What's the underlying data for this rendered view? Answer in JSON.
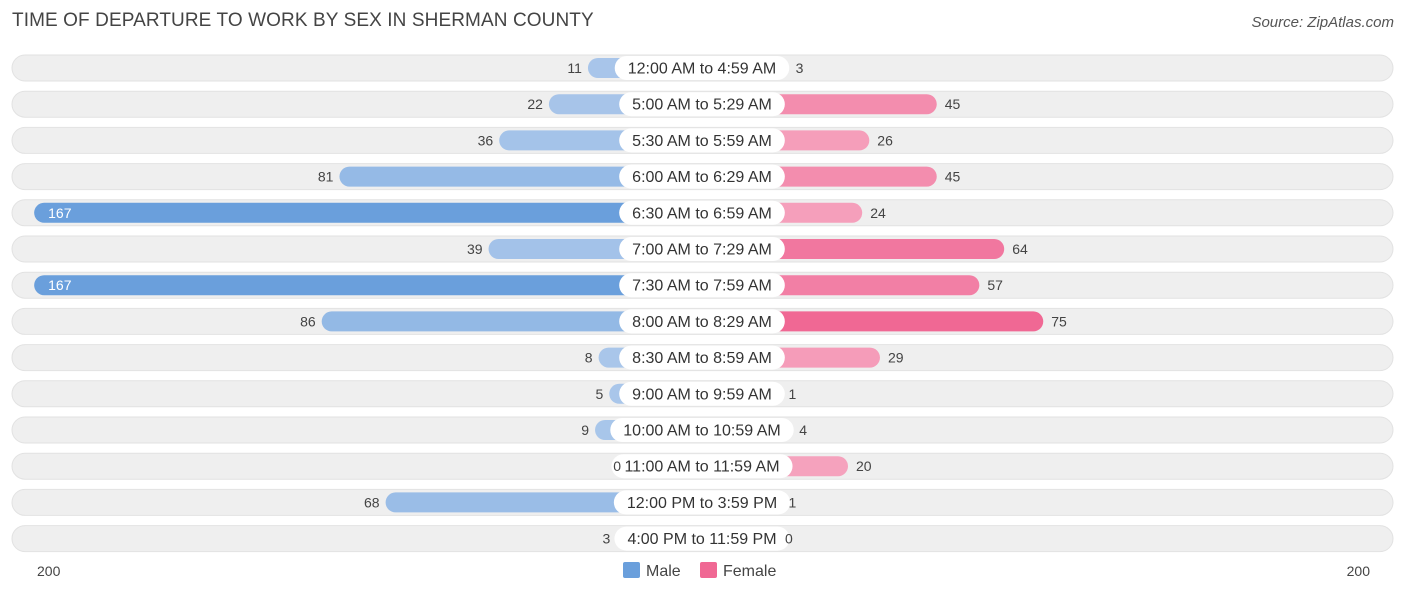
{
  "title": "TIME OF DEPARTURE TO WORK BY SEX IN SHERMAN COUNTY",
  "source": "Source: ZipAtlas.com",
  "colors": {
    "male_light": "#a9c6ea",
    "male_dark": "#6a9fdc",
    "female_light": "#f6aac3",
    "female_dark": "#f06894",
    "track": "#efefef"
  },
  "chart_data": {
    "type": "bar",
    "orientation": "horizontal-diverging",
    "title": "TIME OF DEPARTURE TO WORK BY SEX IN SHERMAN COUNTY",
    "categories": [
      "12:00 AM to 4:59 AM",
      "5:00 AM to 5:29 AM",
      "5:30 AM to 5:59 AM",
      "6:00 AM to 6:29 AM",
      "6:30 AM to 6:59 AM",
      "7:00 AM to 7:29 AM",
      "7:30 AM to 7:59 AM",
      "8:00 AM to 8:29 AM",
      "8:30 AM to 8:59 AM",
      "9:00 AM to 9:59 AM",
      "10:00 AM to 10:59 AM",
      "11:00 AM to 11:59 AM",
      "12:00 PM to 3:59 PM",
      "4:00 PM to 11:59 PM"
    ],
    "series": [
      {
        "name": "Male",
        "values": [
          11,
          22,
          36,
          81,
          167,
          39,
          167,
          86,
          8,
          5,
          9,
          0,
          68,
          3
        ]
      },
      {
        "name": "Female",
        "values": [
          3,
          45,
          26,
          45,
          24,
          64,
          57,
          75,
          29,
          1,
          4,
          20,
          1,
          0
        ]
      }
    ],
    "axis": {
      "left_label": "200",
      "right_label": "200",
      "max": 200
    },
    "legend": {
      "position": "bottom-center",
      "entries": [
        "Male",
        "Female"
      ]
    }
  }
}
